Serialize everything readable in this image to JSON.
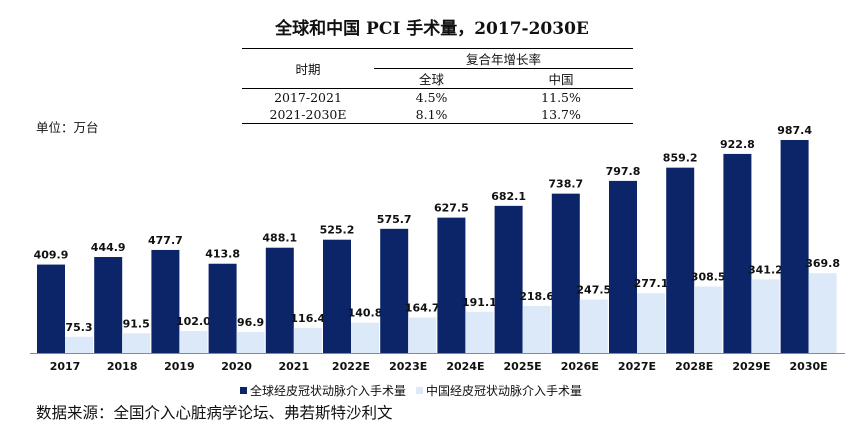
{
  "title": "全球和中国 PCI 手术量，2017-2030E",
  "unit_label": "单位：万台",
  "source": "数据来源：全国介入心脏病学论坛、弗若斯特沙利文",
  "cagr_table": {
    "period_header": "时期",
    "cagr_header": "复合年增长率",
    "global_header": "全球",
    "china_header": "中国",
    "rows": [
      {
        "period": "2017-2021",
        "global": "4.5%",
        "china": "11.5%"
      },
      {
        "period": "2021-2030E",
        "global": "8.1%",
        "china": "13.7%"
      }
    ]
  },
  "colors": {
    "global": "#0c2468",
    "china": "#dce9f8"
  },
  "chart_data": {
    "type": "bar",
    "title": "全球和中国 PCI 手术量，2017-2030E",
    "ylabel": "单位：万台",
    "ylim": [
      0,
      1000
    ],
    "categories": [
      "2017",
      "2018",
      "2019",
      "2020",
      "2021",
      "2022E",
      "2023E",
      "2024E",
      "2025E",
      "2026E",
      "2027E",
      "2028E",
      "2029E",
      "2030E"
    ],
    "series": [
      {
        "name": "全球经皮冠状动脉介入手术量",
        "values": [
          409.9,
          444.9,
          477.7,
          413.8,
          488.1,
          525.2,
          575.7,
          627.5,
          682.1,
          738.7,
          797.8,
          859.2,
          922.8,
          987.4
        ],
        "labels": [
          "409.9",
          "444.9",
          "477.7",
          "413.8",
          "488.1",
          "525.2",
          "575.7",
          "627.5",
          "682.1",
          "738.7",
          "797.8",
          "859.2",
          "922.8",
          "987.4"
        ]
      },
      {
        "name": "中国经皮冠状动脉介入手术量",
        "values": [
          75.3,
          91.5,
          102.0,
          96.9,
          116.4,
          140.8,
          164.7,
          191.1,
          218.6,
          247.5,
          277.1,
          308.5,
          341.2,
          369.8
        ],
        "labels": [
          "75.3",
          "91.5",
          "102.0",
          "96.9",
          "116.4",
          "140.8",
          "164.7",
          "191.1",
          "218.6",
          "247.5",
          "277.1",
          "308.5",
          "341.2",
          "369.8"
        ]
      }
    ]
  }
}
